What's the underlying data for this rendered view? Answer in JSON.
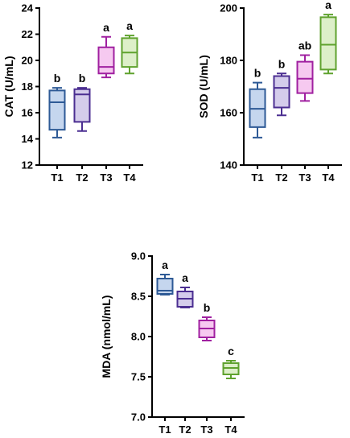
{
  "chart_data": [
    {
      "type": "box",
      "ylabel": "CAT (U/mL)",
      "ylim": [
        12,
        24
      ],
      "yticks": [
        12,
        14,
        16,
        18,
        20,
        22,
        24
      ],
      "categories": [
        "T1",
        "T2",
        "T3",
        "T4"
      ],
      "colors": {
        "stroke": [
          "#2E5A96",
          "#4B2E91",
          "#A020A0",
          "#5FA22E"
        ],
        "fill": [
          "#C5D6EE",
          "#D4CCEB",
          "#F6C9F0",
          "#DDEFC9"
        ]
      },
      "boxes": [
        {
          "min": 14.1,
          "q1": 14.7,
          "median": 16.8,
          "q3": 17.7,
          "max": 17.9
        },
        {
          "min": 14.6,
          "q1": 15.3,
          "median": 17.4,
          "q3": 17.8,
          "max": 17.9
        },
        {
          "min": 18.7,
          "q1": 19.0,
          "median": 19.5,
          "q3": 21.0,
          "max": 21.8
        },
        {
          "min": 19.0,
          "q1": 19.5,
          "median": 20.6,
          "q3": 21.7,
          "max": 21.9
        }
      ],
      "significance": [
        "b",
        "b",
        "a",
        "a"
      ]
    },
    {
      "type": "box",
      "ylabel": "SOD (U/mL)",
      "ylim": [
        140,
        200
      ],
      "yticks": [
        140,
        160,
        180,
        200
      ],
      "categories": [
        "T1",
        "T2",
        "T3",
        "T4"
      ],
      "colors": {
        "stroke": [
          "#2E5A96",
          "#4B2E91",
          "#A020A0",
          "#5FA22E"
        ],
        "fill": [
          "#C5D6EE",
          "#D4CCEB",
          "#F6C9F0",
          "#DDEFC9"
        ]
      },
      "boxes": [
        {
          "min": 150.5,
          "q1": 154.5,
          "median": 161.5,
          "q3": 169.0,
          "max": 171.5
        },
        {
          "min": 159.0,
          "q1": 162.0,
          "median": 169.5,
          "q3": 174.0,
          "max": 175.0
        },
        {
          "min": 164.5,
          "q1": 167.5,
          "median": 173.0,
          "q3": 179.5,
          "max": 182.0
        },
        {
          "min": 175.0,
          "q1": 176.5,
          "median": 186.0,
          "q3": 196.5,
          "max": 197.5
        }
      ],
      "significance": [
        "b",
        "b",
        "ab",
        "a"
      ]
    },
    {
      "type": "box",
      "ylabel": "MDA (nmol/mL)",
      "ylim": [
        7.0,
        9.0
      ],
      "yticks": [
        "7.0",
        "7.5",
        "8.0",
        "8.5",
        "9.0"
      ],
      "categories": [
        "T1",
        "T2",
        "T3",
        "T4"
      ],
      "colors": {
        "stroke": [
          "#2E5A96",
          "#4B2E91",
          "#A020A0",
          "#5FA22E"
        ],
        "fill": [
          "#C5D6EE",
          "#D4CCEB",
          "#F6C9F0",
          "#DDEFC9"
        ]
      },
      "boxes": [
        {
          "min": 8.52,
          "q1": 8.53,
          "median": 8.57,
          "q3": 8.72,
          "max": 8.77
        },
        {
          "min": 8.36,
          "q1": 8.37,
          "median": 8.47,
          "q3": 8.56,
          "max": 8.61
        },
        {
          "min": 7.95,
          "q1": 7.99,
          "median": 8.1,
          "q3": 8.2,
          "max": 8.24
        },
        {
          "min": 7.48,
          "q1": 7.53,
          "median": 7.61,
          "q3": 7.67,
          "max": 7.7
        }
      ],
      "significance": [
        "a",
        "a",
        "b",
        "c"
      ]
    }
  ]
}
